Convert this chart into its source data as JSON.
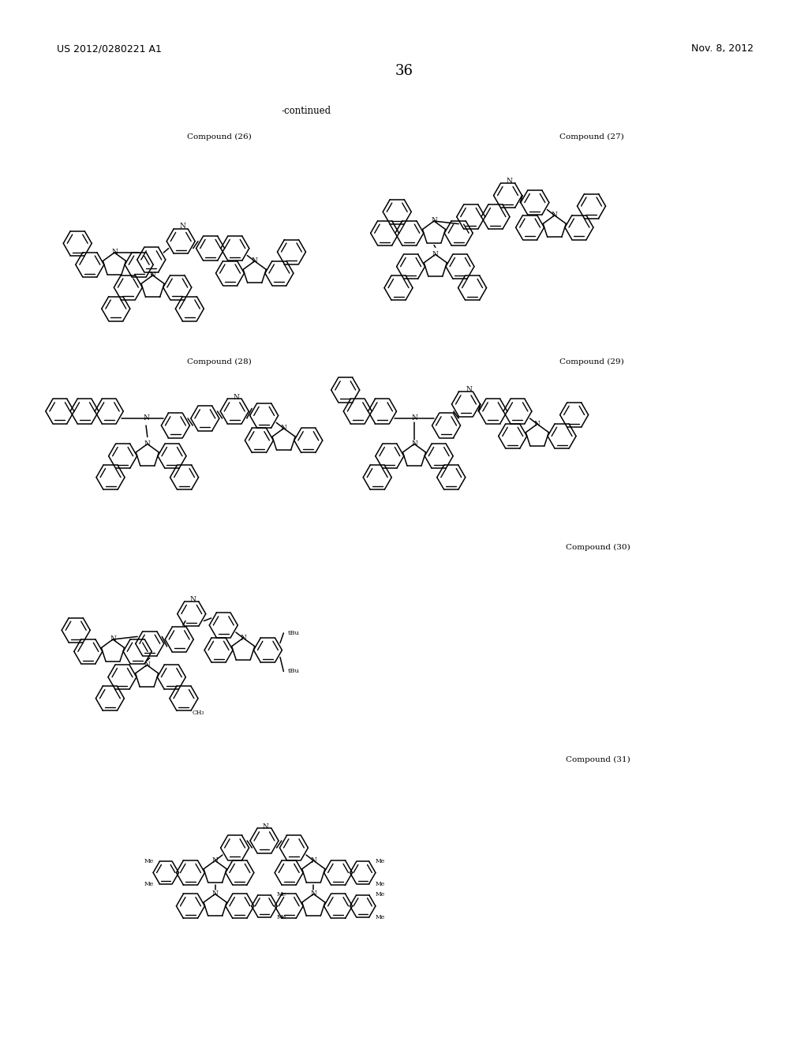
{
  "page_number": "36",
  "header_left": "US 2012/0280221 A1",
  "header_right": "Nov. 8, 2012",
  "continued_label": "-continued",
  "background_color": "#ffffff",
  "text_color": "#000000",
  "label_fontsize": 7.5,
  "header_fontsize": 9,
  "page_num_fontsize": 13,
  "continued_fontsize": 8.5,
  "comp26_label": "Compound (26)",
  "comp27_label": "Compound (27)",
  "comp28_label": "Compound (28)",
  "comp29_label": "Compound (29)",
  "comp30_label": "Compound (30)",
  "comp31_label": "Compound (31)"
}
